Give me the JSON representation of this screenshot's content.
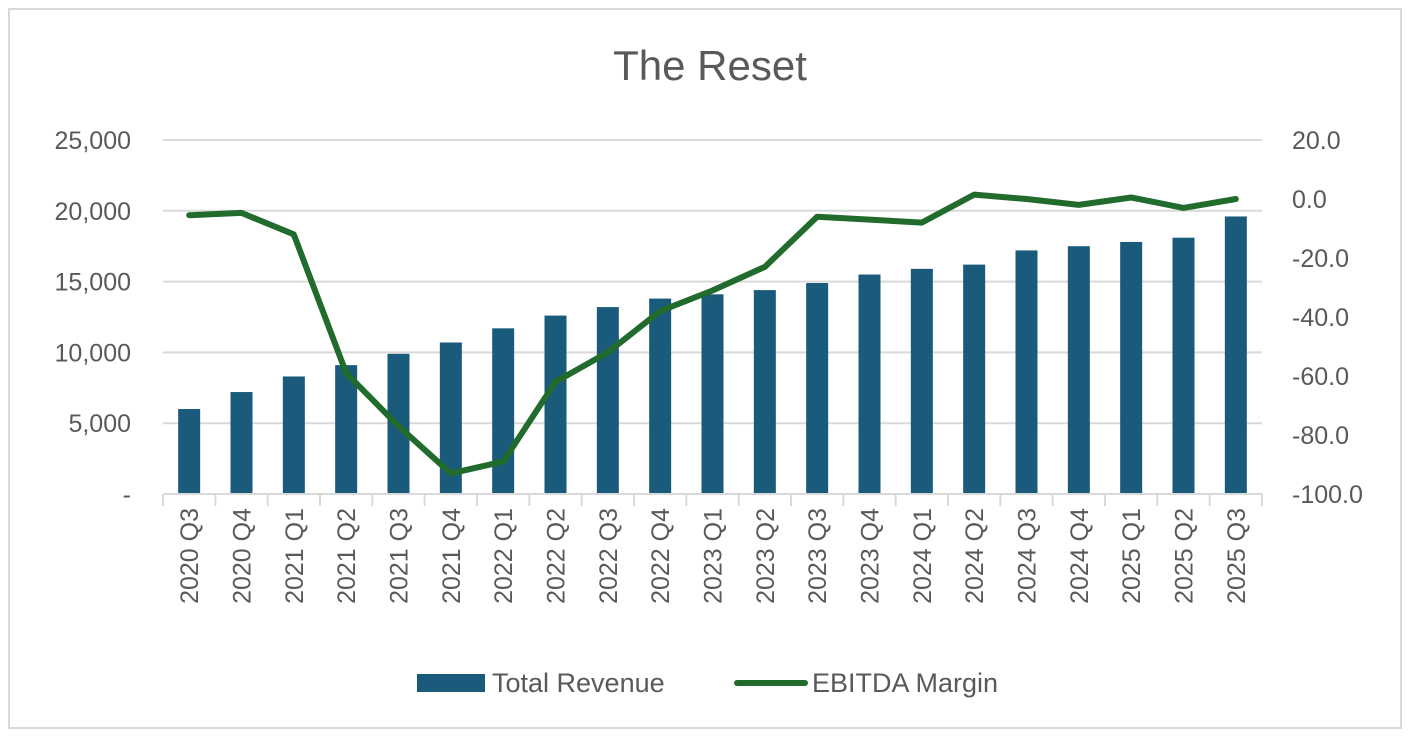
{
  "chart_data": {
    "type": "bar+line",
    "title": "The Reset",
    "categories": [
      "2020 Q3",
      "2020 Q4",
      "2021 Q1",
      "2021 Q2",
      "2021 Q3",
      "2021 Q4",
      "2022 Q1",
      "2022 Q2",
      "2022 Q3",
      "2022 Q4",
      "2023 Q1",
      "2023 Q2",
      "2023 Q3",
      "2023 Q4",
      "2024 Q1",
      "2024 Q2",
      "2024 Q3",
      "2024 Q4",
      "2025 Q1",
      "2025 Q2",
      "2025 Q3"
    ],
    "series": [
      {
        "name": "Total Revenue",
        "type": "bar",
        "axis": "left",
        "color": "#1a5a7a",
        "values": [
          6000,
          7200,
          8300,
          9100,
          9900,
          10700,
          11700,
          12600,
          13200,
          13800,
          14100,
          14400,
          14900,
          15500,
          15900,
          16200,
          17200,
          17500,
          17800,
          18100,
          19600
        ]
      },
      {
        "name": "EBITDA Margin",
        "type": "line",
        "axis": "right",
        "color": "#216b2d",
        "values": [
          -5.5,
          -4.7,
          -12.0,
          -59.0,
          -77.0,
          -93.0,
          -89.0,
          -62.0,
          -52.0,
          -38.0,
          -31.0,
          -23.0,
          -6.0,
          -7.0,
          -8.0,
          1.5,
          0.0,
          -2.0,
          0.5,
          -3.0,
          0.0
        ]
      }
    ],
    "y_left": {
      "min": 0,
      "max": 25000,
      "ticks": [
        "-",
        "5,000",
        "10,000",
        "15,000",
        "20,000",
        "25,000"
      ]
    },
    "y_right": {
      "min": -100,
      "max": 20,
      "ticks": [
        "-100.0",
        "-80.0",
        "-60.0",
        "-40.0",
        "-20.0",
        "0.0",
        "20.0"
      ]
    },
    "grid": true,
    "legend": "bottom"
  }
}
